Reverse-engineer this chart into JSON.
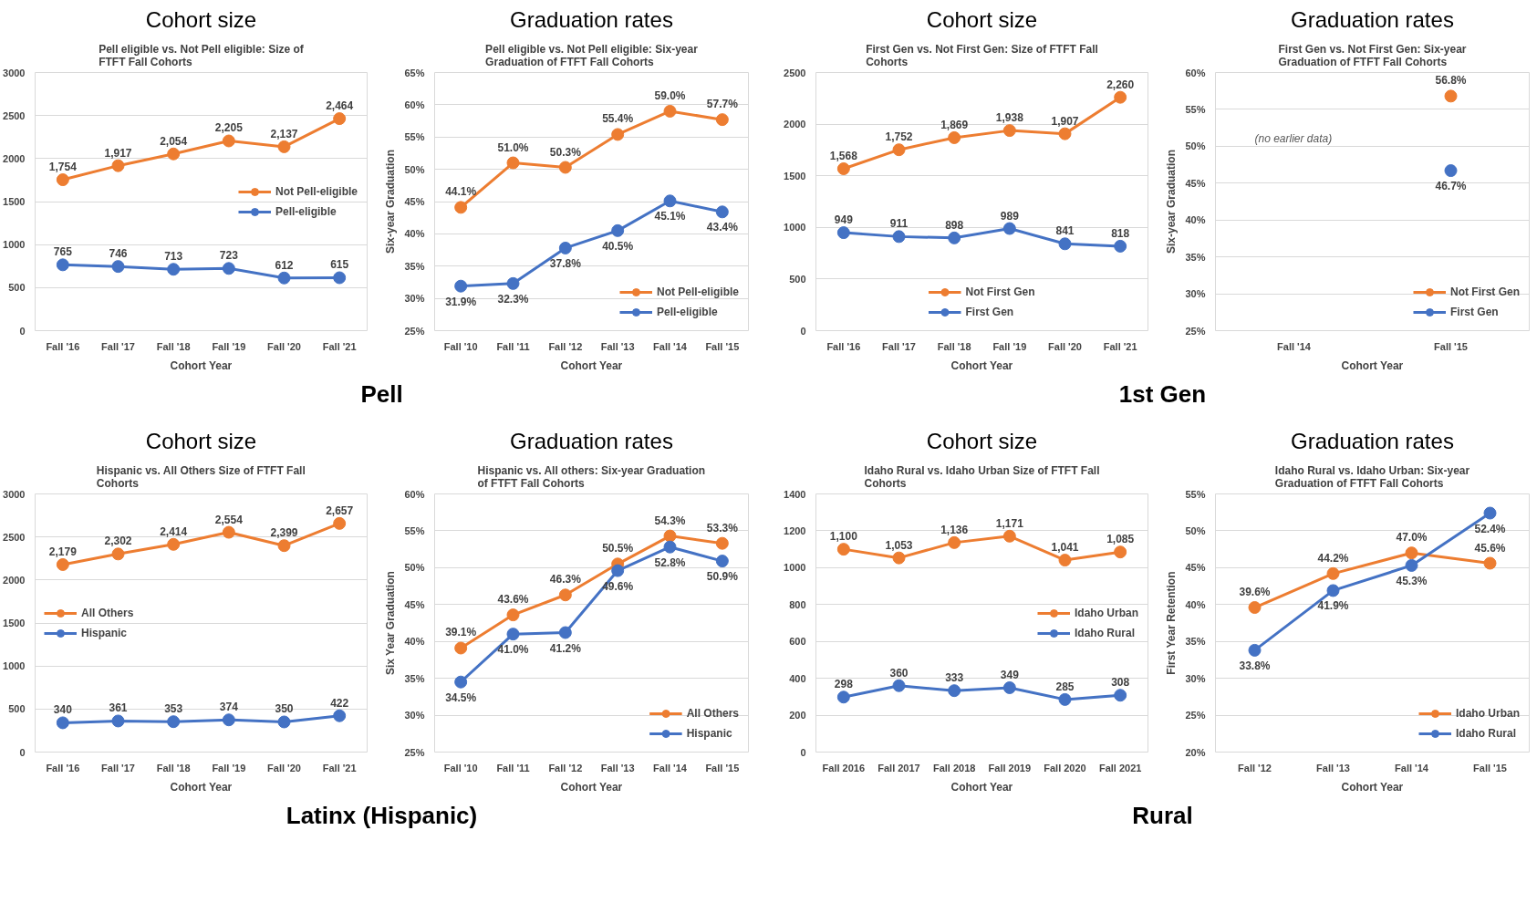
{
  "chart_data": [
    {
      "type": "line",
      "title": "Cohort size",
      "subtitle": "Pell eligible vs. Not Pell eligible: Size of FTFT Fall Cohorts",
      "xlabel": "Cohort Year",
      "categories": [
        "Fall '16",
        "Fall '17",
        "Fall '18",
        "Fall '19",
        "Fall '20",
        "Fall '21"
      ],
      "ylim": [
        0,
        3000
      ],
      "yticks": [
        0,
        500,
        1000,
        1500,
        2000,
        2500,
        3000
      ],
      "grid": "y",
      "legend": "right",
      "marker": "circle",
      "series": [
        {
          "name": "Not Pell-eligible",
          "color": "#ed7d31",
          "values": [
            1754,
            1917,
            2054,
            2205,
            2137,
            2464
          ],
          "value_labels": [
            "1,754",
            "1,917",
            "2,054",
            "2,205",
            "2,137",
            "2,464"
          ]
        },
        {
          "name": "Pell-eligible",
          "color": "#4472c4",
          "values": [
            765,
            746,
            713,
            723,
            612,
            615
          ],
          "value_labels": [
            "765",
            "746",
            "713",
            "723",
            "612",
            "615"
          ]
        }
      ]
    },
    {
      "type": "line",
      "title": "Graduation rates",
      "subtitle": "Pell eligible vs. Not Pell eligible: Six-year Graduation of FTFT Fall Cohorts",
      "xlabel": "Cohort Year",
      "ylabel": "Six-year Graduation",
      "categories": [
        "Fall '10",
        "Fall '11",
        "Fall '12",
        "Fall '13",
        "Fall '14",
        "Fall '15"
      ],
      "ylim": [
        25,
        65
      ],
      "yticks": [
        {
          "value": 25,
          "label": "25%"
        },
        {
          "value": 30,
          "label": "30%"
        },
        {
          "value": 35,
          "label": "35%"
        },
        {
          "value": 40,
          "label": "40%"
        },
        {
          "value": 45,
          "label": "45%"
        },
        {
          "value": 50,
          "label": "50%"
        },
        {
          "value": 55,
          "label": "55%"
        },
        {
          "value": 60,
          "label": "60%"
        },
        {
          "value": 65,
          "label": "65%"
        }
      ],
      "grid": "y",
      "legend": "bottom right",
      "marker": "circle",
      "series": [
        {
          "name": "Not Pell-eligible",
          "color": "#ed7d31",
          "values": [
            44.1,
            51.0,
            50.3,
            55.4,
            59.0,
            57.7
          ],
          "value_labels": [
            "44.1%",
            "51.0%",
            "50.3%",
            "55.4%",
            "59.0%",
            "57.7%"
          ]
        },
        {
          "name": "Pell-eligible",
          "color": "#4472c4",
          "values": [
            31.9,
            32.3,
            37.8,
            40.5,
            45.1,
            43.4
          ],
          "value_labels": [
            "31.9%",
            "32.3%",
            "37.8%",
            "40.5%",
            "45.1%",
            "43.4%"
          ]
        }
      ]
    },
    {
      "type": "other",
      "annotations": [
        "Pell"
      ]
    },
    {
      "type": "line",
      "title": "Cohort size",
      "subtitle": "First Gen vs. Not First Gen: Size of FTFT Fall Cohorts",
      "xlabel": "Cohort Year",
      "categories": [
        "Fall '16",
        "Fall '17",
        "Fall '18",
        "Fall '19",
        "Fall '20",
        "Fall '21"
      ],
      "ylim": [
        0,
        2500
      ],
      "yticks": [
        0,
        500,
        1000,
        1500,
        2000,
        2500
      ],
      "grid": "y",
      "legend": "bottom",
      "marker": "circle",
      "series": [
        {
          "name": "Not First Gen",
          "color": "#ed7d31",
          "values": [
            1568,
            1752,
            1869,
            1938,
            1907,
            2260
          ],
          "value_labels": [
            "1,568",
            "1,752",
            "1,869",
            "1,938",
            "1,907",
            "2,260"
          ]
        },
        {
          "name": "First Gen",
          "color": "#4472c4",
          "values": [
            949,
            911,
            898,
            989,
            841,
            818
          ],
          "value_labels": [
            "949",
            "911",
            "898",
            "989",
            "841",
            "818"
          ]
        }
      ]
    },
    {
      "type": "line",
      "title": "Graduation rates",
      "subtitle": "First Gen vs. Not First Gen: Six-year Graduation of FTFT Fall Cohorts",
      "xlabel": "Cohort Year",
      "ylabel": "Six-year Graduation",
      "categories": [
        "Fall '14",
        "Fall '15"
      ],
      "ylim": [
        25,
        60
      ],
      "yticks": [
        {
          "value": 25,
          "label": "25%"
        },
        {
          "value": 30,
          "label": "30%"
        },
        {
          "value": 35,
          "label": "35%"
        },
        {
          "value": 40,
          "label": "40%"
        },
        {
          "value": 45,
          "label": "45%"
        },
        {
          "value": 50,
          "label": "50%"
        },
        {
          "value": 55,
          "label": "55%"
        },
        {
          "value": 60,
          "label": "60%"
        }
      ],
      "grid": "y",
      "legend": "bottom right",
      "marker": "circle",
      "annotations": [
        "(no earlier data)"
      ],
      "series": [
        {
          "name": "Not First Gen",
          "color": "#ed7d31",
          "values": [
            null,
            56.8
          ],
          "value_labels": [
            null,
            "56.8%"
          ]
        },
        {
          "name": "First Gen",
          "color": "#4472c4",
          "values": [
            null,
            46.7
          ],
          "value_labels": [
            null,
            "46.7%"
          ]
        }
      ]
    },
    {
      "type": "other",
      "annotations": [
        "1st Gen"
      ]
    },
    {
      "type": "line",
      "title": "Cohort size",
      "subtitle": "Hispanic vs. All Others Size of FTFT Fall Cohorts",
      "xlabel": "Cohort Year",
      "categories": [
        "Fall '16",
        "Fall '17",
        "Fall '18",
        "Fall '19",
        "Fall '20",
        "Fall '21"
      ],
      "ylim": [
        0,
        3000
      ],
      "yticks": [
        0,
        500,
        1000,
        1500,
        2000,
        2500,
        3000
      ],
      "grid": "y",
      "legend": "left",
      "marker": "circle",
      "series": [
        {
          "name": "All Others",
          "color": "#ed7d31",
          "values": [
            2179,
            2302,
            2414,
            2554,
            2399,
            2657
          ],
          "value_labels": [
            "2,179",
            "2,302",
            "2,414",
            "2,554",
            "2,399",
            "2,657"
          ]
        },
        {
          "name": "Hispanic",
          "color": "#4472c4",
          "values": [
            340,
            361,
            353,
            374,
            350,
            422
          ],
          "value_labels": [
            "340",
            "361",
            "353",
            "374",
            "350",
            "422"
          ]
        }
      ]
    },
    {
      "type": "line",
      "title": "Graduation rates",
      "subtitle": "Hispanic vs. All others: Six-year Graduation of FTFT Fall Cohorts",
      "xlabel": "Cohort Year",
      "ylabel": "Six Year Graduation",
      "categories": [
        "Fall '10",
        "Fall '11",
        "Fall '12",
        "Fall '13",
        "Fall '14",
        "Fall '15"
      ],
      "ylim": [
        25,
        60
      ],
      "yticks": [
        {
          "value": 25,
          "label": "25%"
        },
        {
          "value": 30,
          "label": "30%"
        },
        {
          "value": 35,
          "label": "35%"
        },
        {
          "value": 40,
          "label": "40%"
        },
        {
          "value": 45,
          "label": "45%"
        },
        {
          "value": 50,
          "label": "50%"
        },
        {
          "value": 55,
          "label": "55%"
        },
        {
          "value": 60,
          "label": "60%"
        }
      ],
      "grid": "y",
      "legend": "bottom right",
      "marker": "circle",
      "series": [
        {
          "name": "All Others",
          "color": "#ed7d31",
          "values": [
            39.1,
            43.6,
            46.3,
            50.5,
            54.3,
            53.3
          ],
          "value_labels": [
            "39.1%",
            "43.6%",
            "46.3%",
            "50.5%",
            "54.3%",
            "53.3%"
          ]
        },
        {
          "name": "Hispanic",
          "color": "#4472c4",
          "values": [
            34.5,
            41.0,
            41.2,
            49.6,
            52.8,
            50.9
          ],
          "value_labels": [
            "34.5%",
            "41.0%",
            "41.2%",
            "49.6%",
            "52.8%",
            "50.9%"
          ]
        }
      ]
    },
    {
      "type": "other",
      "annotations": [
        "Latinx (Hispanic)"
      ]
    },
    {
      "type": "line",
      "title": "Cohort size",
      "subtitle": "Idaho Rural vs. Idaho Urban Size of FTFT Fall Cohorts",
      "xlabel": "Cohort Year",
      "categories": [
        "Fall 2016",
        "Fall 2017",
        "Fall 2018",
        "Fall 2019",
        "Fall 2020",
        "Fall 2021"
      ],
      "ylim": [
        0,
        1400
      ],
      "yticks": [
        0,
        200,
        400,
        600,
        800,
        1000,
        1200,
        1400
      ],
      "grid": "y",
      "legend": "right",
      "marker": "circle",
      "series": [
        {
          "name": "Idaho Urban",
          "color": "#ed7d31",
          "values": [
            1100,
            1053,
            1136,
            1171,
            1041,
            1085
          ],
          "value_labels": [
            "1,100",
            "1,053",
            "1,136",
            "1,171",
            "1,041",
            "1,085"
          ]
        },
        {
          "name": "Idaho Rural",
          "color": "#4472c4",
          "values": [
            298,
            360,
            333,
            349,
            285,
            308
          ],
          "value_labels": [
            "298",
            "360",
            "333",
            "349",
            "285",
            "308"
          ]
        }
      ]
    },
    {
      "type": "line",
      "title": "Graduation rates",
      "subtitle": "Idaho Rural vs. Idaho Urban: Six-year Graduation of FTFT Fall Cohorts",
      "xlabel": "Cohort Year",
      "ylabel": "First Year Retention",
      "categories": [
        "Fall '12",
        "Fall '13",
        "Fall '14",
        "Fall '15"
      ],
      "ylim": [
        20,
        55
      ],
      "yticks": [
        {
          "value": 20,
          "label": "20%"
        },
        {
          "value": 25,
          "label": "25%"
        },
        {
          "value": 30,
          "label": "30%"
        },
        {
          "value": 35,
          "label": "35%"
        },
        {
          "value": 40,
          "label": "40%"
        },
        {
          "value": 45,
          "label": "45%"
        },
        {
          "value": 50,
          "label": "50%"
        },
        {
          "value": 55,
          "label": "55%"
        }
      ],
      "grid": "y",
      "legend": "bottom right",
      "marker": "circle",
      "series": [
        {
          "name": "Idaho Urban",
          "color": "#ed7d31",
          "values": [
            39.6,
            44.2,
            47.0,
            45.6
          ],
          "value_labels": [
            "39.6%",
            "44.2%",
            "47.0%",
            "45.6%"
          ]
        },
        {
          "name": "Idaho Rural",
          "color": "#4472c4",
          "values": [
            33.8,
            41.9,
            45.3,
            52.4
          ],
          "value_labels": [
            "33.8%",
            "41.9%",
            "45.3%",
            "52.4%"
          ]
        }
      ]
    },
    {
      "type": "other",
      "annotations": [
        "Rural"
      ]
    }
  ]
}
